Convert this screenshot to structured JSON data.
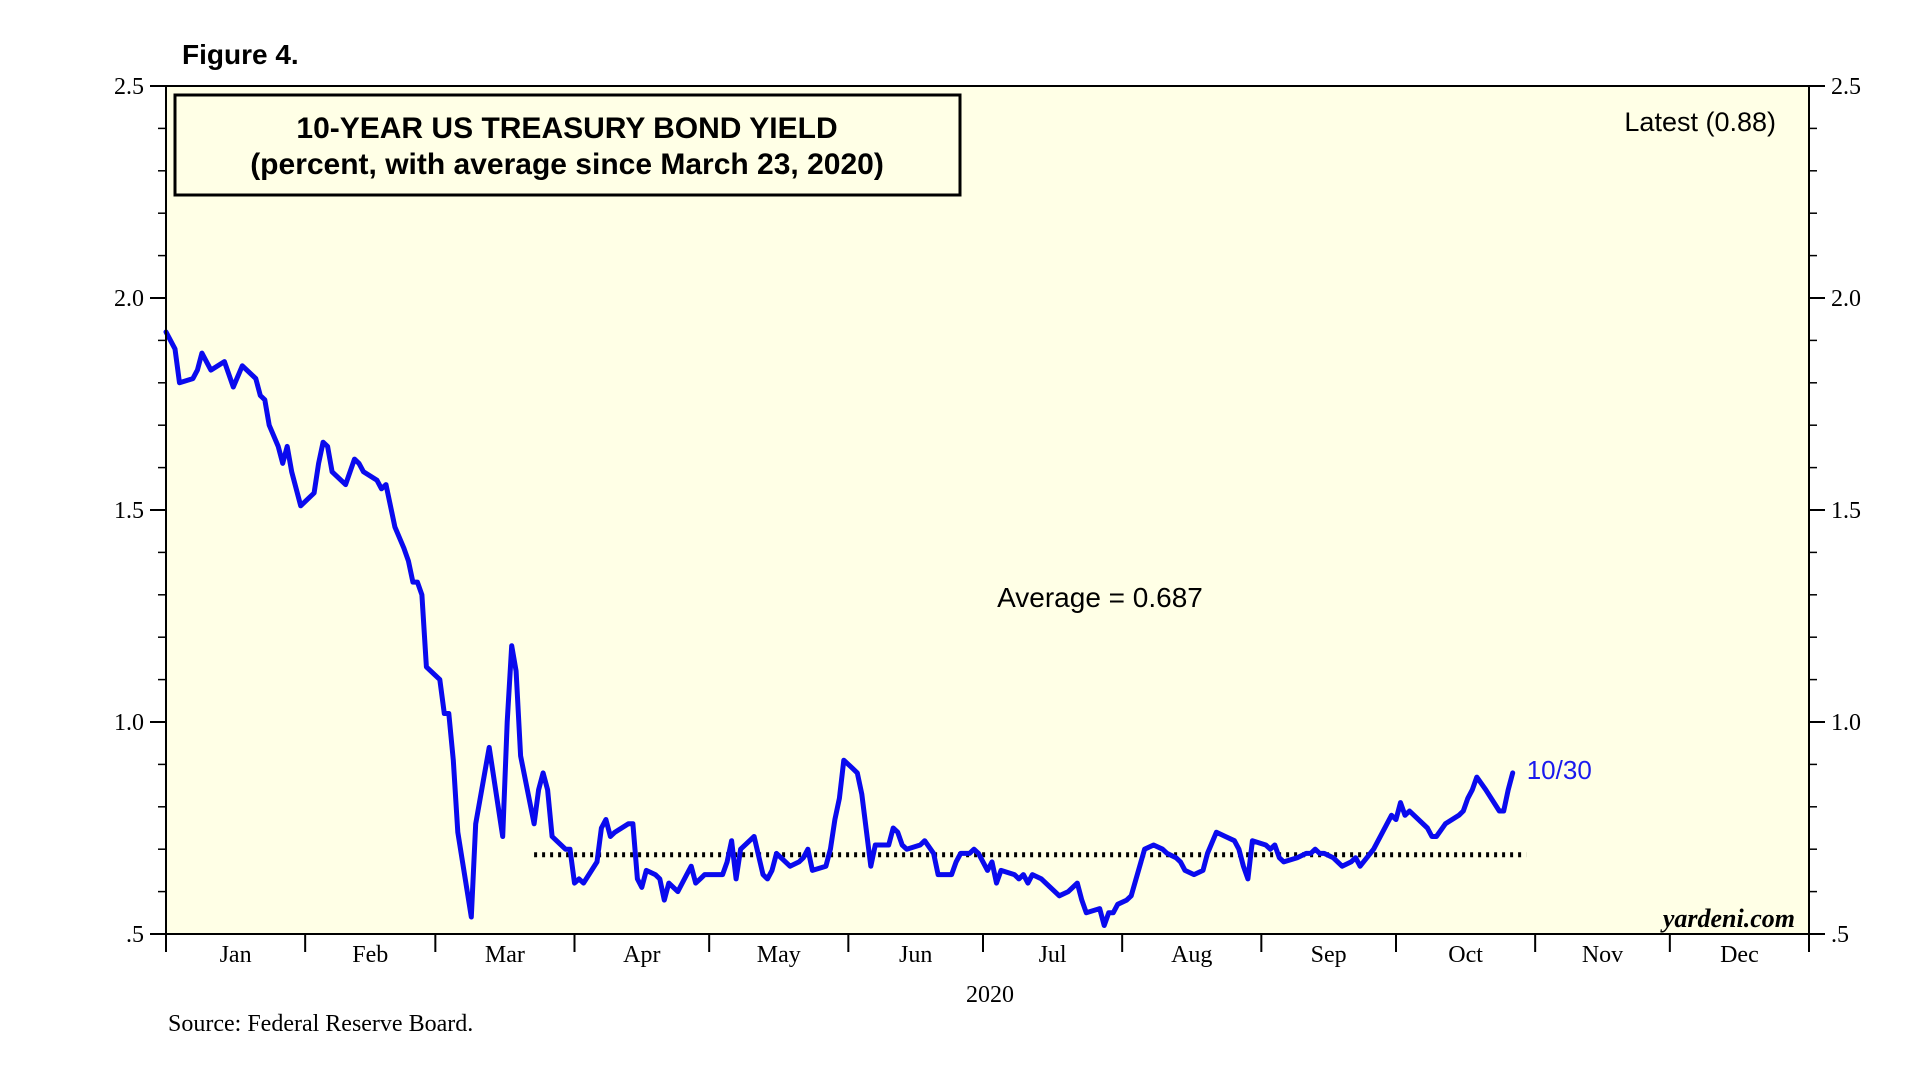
{
  "figure_label": "Figure 4.",
  "source": "Source: Federal Reserve Board.",
  "watermark": "yardeni.com",
  "chart_data": {
    "type": "line",
    "title": "10-YEAR US TREASURY BOND YIELD",
    "subtitle": "(percent, with average since March 23, 2020)",
    "xlabel": "2020",
    "ylabel": "",
    "ylim": [
      0.5,
      2.5
    ],
    "y_ticks": [
      {
        "value": 0.5,
        "label": ".5"
      },
      {
        "value": 1.0,
        "label": "1.0"
      },
      {
        "value": 1.5,
        "label": "1.5"
      },
      {
        "value": 2.0,
        "label": "2.0"
      },
      {
        "value": 2.5,
        "label": "2.5"
      }
    ],
    "xlim_day": [
      0,
      366
    ],
    "months": [
      {
        "label": "Jan",
        "start_day": 0
      },
      {
        "label": "Feb",
        "start_day": 31
      },
      {
        "label": "Mar",
        "start_day": 60
      },
      {
        "label": "Apr",
        "start_day": 91
      },
      {
        "label": "May",
        "start_day": 121
      },
      {
        "label": "Jun",
        "start_day": 152
      },
      {
        "label": "Jul",
        "start_day": 182
      },
      {
        "label": "Aug",
        "start_day": 213
      },
      {
        "label": "Sep",
        "start_day": 244
      },
      {
        "label": "Oct",
        "start_day": 274
      },
      {
        "label": "Nov",
        "start_day": 305
      },
      {
        "label": "Dec",
        "start_day": 335
      }
    ],
    "grid": false,
    "latest_label": "Latest (0.88)",
    "end_label": "10/30",
    "average": {
      "label": "Average = 0.687",
      "value": 0.687,
      "start_day": 82,
      "end_day": 303
    },
    "colors": {
      "series": "#0a0aee",
      "background": "#ffffe6",
      "average": "#000000",
      "end_label": "#1a1aee"
    },
    "series": [
      {
        "name": "10-Year US Treasury Bond Yield",
        "points": [
          [
            0,
            1.92
          ],
          [
            2,
            1.88
          ],
          [
            3,
            1.8
          ],
          [
            6,
            1.81
          ],
          [
            7,
            1.83
          ],
          [
            8,
            1.87
          ],
          [
            10,
            1.83
          ],
          [
            13,
            1.85
          ],
          [
            15,
            1.79
          ],
          [
            17,
            1.84
          ],
          [
            19,
            1.82
          ],
          [
            20,
            1.81
          ],
          [
            21,
            1.77
          ],
          [
            22,
            1.76
          ],
          [
            23,
            1.7
          ],
          [
            25,
            1.65
          ],
          [
            26,
            1.61
          ],
          [
            27,
            1.65
          ],
          [
            28,
            1.59
          ],
          [
            30,
            1.51
          ],
          [
            33,
            1.54
          ],
          [
            34,
            1.61
          ],
          [
            35,
            1.66
          ],
          [
            36,
            1.65
          ],
          [
            37,
            1.59
          ],
          [
            40,
            1.56
          ],
          [
            42,
            1.62
          ],
          [
            43,
            1.61
          ],
          [
            44,
            1.59
          ],
          [
            47,
            1.57
          ],
          [
            48,
            1.55
          ],
          [
            49,
            1.56
          ],
          [
            51,
            1.46
          ],
          [
            53,
            1.41
          ],
          [
            54,
            1.38
          ],
          [
            55,
            1.33
          ],
          [
            56,
            1.33
          ],
          [
            57,
            1.3
          ],
          [
            58,
            1.13
          ],
          [
            61,
            1.1
          ],
          [
            62,
            1.02
          ],
          [
            63,
            1.02
          ],
          [
            64,
            0.91
          ],
          [
            65,
            0.74
          ],
          [
            68,
            0.54
          ],
          [
            69,
            0.76
          ],
          [
            72,
            0.94
          ],
          [
            75,
            0.73
          ],
          [
            76,
            1.0
          ],
          [
            77,
            1.18
          ],
          [
            78,
            1.12
          ],
          [
            79,
            0.92
          ],
          [
            82,
            0.76
          ],
          [
            83,
            0.84
          ],
          [
            84,
            0.88
          ],
          [
            85,
            0.84
          ],
          [
            86,
            0.73
          ],
          [
            87,
            0.72
          ],
          [
            89,
            0.7
          ],
          [
            90,
            0.7
          ],
          [
            91,
            0.62
          ],
          [
            92,
            0.63
          ],
          [
            93,
            0.62
          ],
          [
            96,
            0.67
          ],
          [
            97,
            0.75
          ],
          [
            98,
            0.77
          ],
          [
            99,
            0.73
          ],
          [
            100,
            0.74
          ],
          [
            103,
            0.76
          ],
          [
            104,
            0.76
          ],
          [
            105,
            0.63
          ],
          [
            106,
            0.61
          ],
          [
            107,
            0.65
          ],
          [
            109,
            0.64
          ],
          [
            110,
            0.63
          ],
          [
            111,
            0.58
          ],
          [
            112,
            0.62
          ],
          [
            114,
            0.6
          ],
          [
            116,
            0.64
          ],
          [
            117,
            0.66
          ],
          [
            118,
            0.62
          ],
          [
            119,
            0.63
          ],
          [
            120,
            0.64
          ],
          [
            124,
            0.64
          ],
          [
            125,
            0.67
          ],
          [
            126,
            0.72
          ],
          [
            127,
            0.63
          ],
          [
            128,
            0.7
          ],
          [
            131,
            0.73
          ],
          [
            133,
            0.64
          ],
          [
            134,
            0.63
          ],
          [
            135,
            0.65
          ],
          [
            136,
            0.69
          ],
          [
            139,
            0.66
          ],
          [
            141,
            0.67
          ],
          [
            142,
            0.68
          ],
          [
            143,
            0.7
          ],
          [
            144,
            0.65
          ],
          [
            147,
            0.66
          ],
          [
            148,
            0.7
          ],
          [
            149,
            0.77
          ],
          [
            150,
            0.82
          ],
          [
            151,
            0.91
          ],
          [
            153,
            0.89
          ],
          [
            154,
            0.88
          ],
          [
            155,
            0.83
          ],
          [
            157,
            0.66
          ],
          [
            158,
            0.71
          ],
          [
            161,
            0.71
          ],
          [
            162,
            0.75
          ],
          [
            163,
            0.74
          ],
          [
            164,
            0.71
          ],
          [
            165,
            0.7
          ],
          [
            168,
            0.71
          ],
          [
            169,
            0.72
          ],
          [
            171,
            0.69
          ],
          [
            172,
            0.64
          ],
          [
            175,
            0.64
          ],
          [
            176,
            0.67
          ],
          [
            177,
            0.69
          ],
          [
            179,
            0.69
          ],
          [
            180,
            0.7
          ],
          [
            181,
            0.69
          ],
          [
            183,
            0.65
          ],
          [
            184,
            0.67
          ],
          [
            185,
            0.62
          ],
          [
            186,
            0.65
          ],
          [
            189,
            0.64
          ],
          [
            190,
            0.63
          ],
          [
            191,
            0.64
          ],
          [
            192,
            0.62
          ],
          [
            193,
            0.64
          ],
          [
            195,
            0.63
          ],
          [
            198,
            0.6
          ],
          [
            199,
            0.59
          ],
          [
            201,
            0.6
          ],
          [
            203,
            0.62
          ],
          [
            204,
            0.58
          ],
          [
            205,
            0.55
          ],
          [
            208,
            0.56
          ],
          [
            209,
            0.52
          ],
          [
            210,
            0.55
          ],
          [
            211,
            0.55
          ],
          [
            212,
            0.57
          ],
          [
            214,
            0.58
          ],
          [
            215,
            0.59
          ],
          [
            218,
            0.7
          ],
          [
            220,
            0.71
          ],
          [
            222,
            0.7
          ],
          [
            223,
            0.69
          ],
          [
            225,
            0.68
          ],
          [
            226,
            0.67
          ],
          [
            227,
            0.65
          ],
          [
            229,
            0.64
          ],
          [
            231,
            0.65
          ],
          [
            232,
            0.69
          ],
          [
            234,
            0.74
          ],
          [
            236,
            0.73
          ],
          [
            238,
            0.72
          ],
          [
            239,
            0.7
          ],
          [
            240,
            0.66
          ],
          [
            241,
            0.63
          ],
          [
            242,
            0.72
          ],
          [
            245,
            0.71
          ],
          [
            246,
            0.7
          ],
          [
            247,
            0.71
          ],
          [
            248,
            0.68
          ],
          [
            249,
            0.67
          ],
          [
            252,
            0.68
          ],
          [
            254,
            0.69
          ],
          [
            255,
            0.69
          ],
          [
            256,
            0.7
          ],
          [
            257,
            0.69
          ],
          [
            258,
            0.69
          ],
          [
            260,
            0.68
          ],
          [
            262,
            0.66
          ],
          [
            264,
            0.67
          ],
          [
            265,
            0.68
          ],
          [
            266,
            0.66
          ],
          [
            269,
            0.7
          ],
          [
            272,
            0.76
          ],
          [
            273,
            0.78
          ],
          [
            274,
            0.77
          ],
          [
            275,
            0.81
          ],
          [
            276,
            0.78
          ],
          [
            277,
            0.79
          ],
          [
            278,
            0.78
          ],
          [
            281,
            0.75
          ],
          [
            282,
            0.73
          ],
          [
            283,
            0.73
          ],
          [
            285,
            0.76
          ],
          [
            288,
            0.78
          ],
          [
            289,
            0.79
          ],
          [
            290,
            0.82
          ],
          [
            291,
            0.84
          ],
          [
            292,
            0.87
          ],
          [
            294,
            0.84
          ],
          [
            297,
            0.79
          ],
          [
            298,
            0.79
          ],
          [
            299,
            0.84
          ],
          [
            300,
            0.88
          ]
        ]
      }
    ]
  }
}
